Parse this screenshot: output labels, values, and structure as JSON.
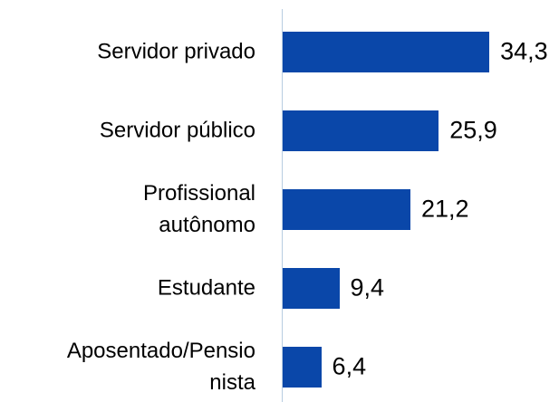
{
  "chart_data": {
    "type": "bar",
    "orientation": "horizontal",
    "categories": [
      "Servidor privado",
      "Servidor público",
      "Profissional\nautônomo",
      "Estudante",
      "Aposentado/Pensio\nnista"
    ],
    "values": [
      34.3,
      25.9,
      21.2,
      9.4,
      6.4
    ],
    "value_labels": [
      "34,3",
      "25,9",
      "21,2",
      "9,4",
      "6,4"
    ],
    "color": "#0a47a9"
  }
}
